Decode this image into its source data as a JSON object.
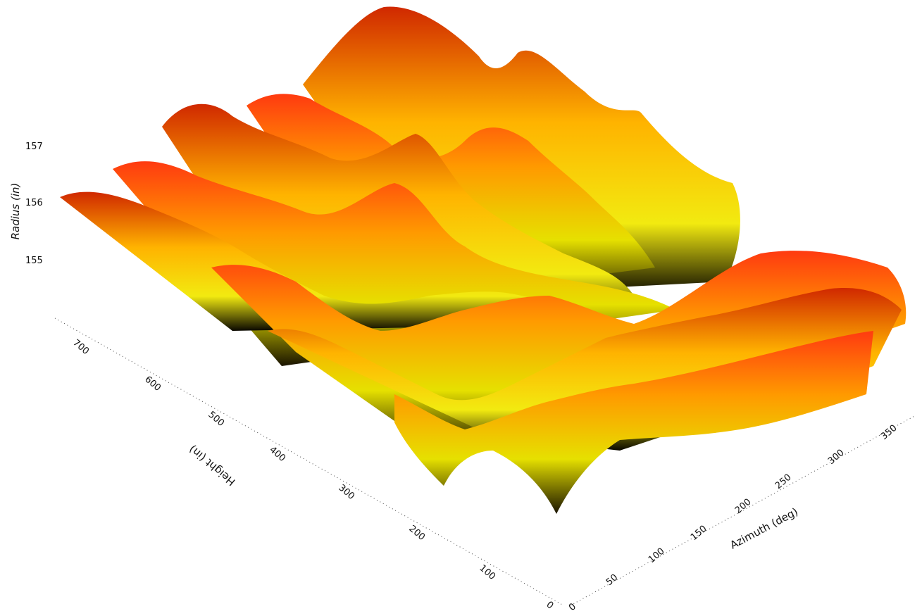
{
  "chart_data": {
    "type": "surface",
    "title": "",
    "zlabel": "Radius (in)",
    "ylabel": "Height (in)",
    "xlabel": "Azimuth (deg)",
    "z_ticks": [
      "155",
      "156",
      "157"
    ],
    "y_ticks": [
      "0",
      "100",
      "200",
      "300",
      "400",
      "500",
      "600",
      "700"
    ],
    "x_ticks": [
      "0",
      "50",
      "100",
      "150",
      "200",
      "250",
      "300",
      "350"
    ],
    "xlim": [
      0,
      360
    ],
    "ylim": [
      0,
      760
    ],
    "zlim": [
      154.5,
      157.3
    ],
    "colormap": "autumn-yellow-red",
    "colors": {
      "low": "#e8e000",
      "mid": "#ffb000",
      "high": "#ff4a10",
      "shadow": "#000000",
      "valley_tint": "#8888ff"
    }
  }
}
